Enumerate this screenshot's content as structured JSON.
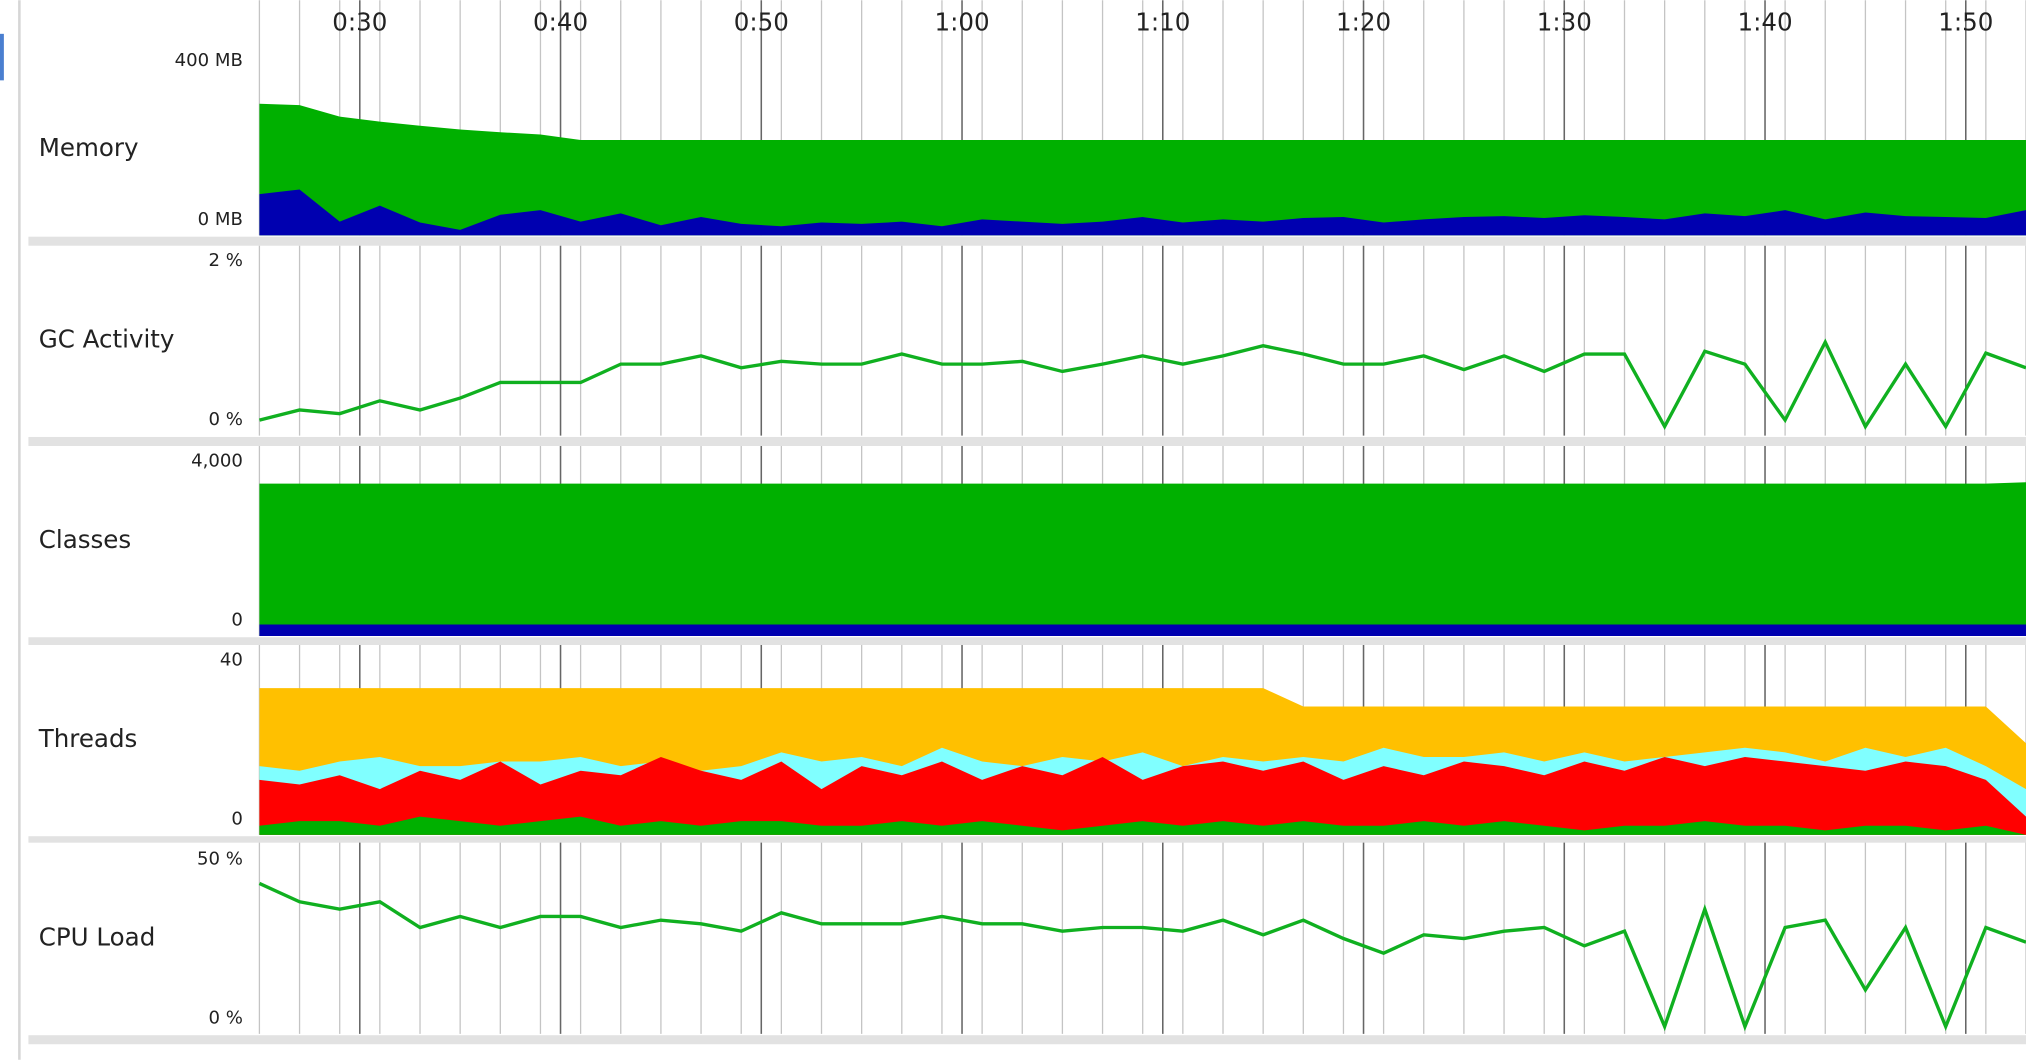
{
  "chart_data": [
    {
      "type": "area",
      "title": "Memory",
      "x": [
        25,
        27,
        29,
        31,
        33,
        35,
        37,
        39,
        41,
        43,
        45,
        47,
        49,
        51,
        53,
        55,
        57,
        59,
        61,
        63,
        65,
        67,
        69,
        71,
        73,
        75,
        77,
        79,
        81,
        83,
        85,
        87,
        89,
        91,
        93,
        95,
        97,
        99,
        101,
        103,
        105,
        107,
        109,
        111,
        113
      ],
      "xlim": [
        24.5,
        113
      ],
      "xticks": [
        {
          "value": 30,
          "label": "0:30"
        },
        {
          "value": 40,
          "label": "0:40"
        },
        {
          "value": 50,
          "label": "0:50"
        },
        {
          "value": 60,
          "label": "1:00"
        },
        {
          "value": 70,
          "label": "1:10"
        },
        {
          "value": 80,
          "label": "1:20"
        },
        {
          "value": 90,
          "label": "1:30"
        },
        {
          "value": 100,
          "label": "1:40"
        },
        {
          "value": 110,
          "label": "1:50"
        }
      ],
      "ylim": [
        0,
        400
      ],
      "yticks": [
        {
          "value": 400,
          "label": "400 MB"
        },
        {
          "value": 0,
          "label": "0 MB"
        }
      ],
      "series": [
        {
          "color": "#00b000",
          "values": [
            287,
            284,
            259,
            248,
            239,
            231,
            225,
            220,
            208,
            208,
            208,
            208,
            208,
            208,
            208,
            208,
            208,
            208,
            208,
            208,
            208,
            208,
            208,
            208,
            208,
            208,
            208,
            208,
            208,
            208,
            208,
            208,
            208,
            208,
            208,
            208,
            208,
            208,
            208,
            208,
            208,
            208,
            208,
            208,
            208
          ]
        },
        {
          "color": "#0000b0",
          "values": [
            90,
            100,
            30,
            65,
            28,
            12,
            45,
            55,
            30,
            48,
            22,
            40,
            25,
            20,
            28,
            25,
            30,
            20,
            35,
            30,
            25,
            30,
            40,
            28,
            35,
            30,
            38,
            40,
            28,
            35,
            40,
            42,
            38,
            44,
            40,
            35,
            48,
            42,
            55,
            35,
            50,
            42,
            40,
            38,
            55
          ]
        }
      ]
    },
    {
      "type": "line",
      "title": "GC Activity",
      "x": [
        25,
        27,
        29,
        31,
        33,
        35,
        37,
        39,
        41,
        43,
        45,
        47,
        49,
        51,
        53,
        55,
        57,
        59,
        61,
        63,
        65,
        67,
        69,
        71,
        73,
        75,
        77,
        79,
        81,
        83,
        85,
        87,
        89,
        91,
        93,
        95,
        97,
        99,
        101,
        103,
        105,
        107,
        109,
        111,
        113
      ],
      "xlim": [
        24.5,
        113
      ],
      "ylim": [
        0,
        2
      ],
      "yticks": [
        {
          "value": 2,
          "label": "2 %"
        },
        {
          "value": 0,
          "label": "0 %"
        }
      ],
      "series": [
        {
          "color": "#10b020",
          "values": [
            0.17,
            0.28,
            0.24,
            0.38,
            0.28,
            0.41,
            0.58,
            0.58,
            0.58,
            0.78,
            0.78,
            0.87,
            0.74,
            0.81,
            0.78,
            0.78,
            0.89,
            0.78,
            0.78,
            0.81,
            0.7,
            0.78,
            0.87,
            0.78,
            0.87,
            0.98,
            0.89,
            0.78,
            0.78,
            0.87,
            0.72,
            0.87,
            0.7,
            0.89,
            0.89,
            0.1,
            0.92,
            0.78,
            0.17,
            1.02,
            0.1,
            0.78,
            0.1,
            0.9,
            0.74
          ]
        }
      ]
    },
    {
      "type": "area",
      "title": "Classes",
      "x": [
        25,
        27,
        29,
        31,
        33,
        35,
        37,
        39,
        41,
        43,
        45,
        47,
        49,
        51,
        53,
        55,
        57,
        59,
        61,
        63,
        65,
        67,
        69,
        71,
        73,
        75,
        77,
        79,
        81,
        83,
        85,
        87,
        89,
        91,
        93,
        95,
        97,
        99,
        101,
        103,
        105,
        107,
        109,
        111,
        113
      ],
      "xlim": [
        24.5,
        113
      ],
      "ylim": [
        0,
        4000
      ],
      "yticks": [
        {
          "value": 4000,
          "label": "4,000"
        },
        0
      ],
      "series": [
        {
          "color": "#00b000",
          "values": [
            3320,
            3320,
            3320,
            3320,
            3320,
            3320,
            3320,
            3320,
            3320,
            3320,
            3320,
            3320,
            3320,
            3320,
            3320,
            3320,
            3320,
            3320,
            3320,
            3320,
            3320,
            3320,
            3320,
            3320,
            3320,
            3320,
            3320,
            3320,
            3320,
            3320,
            3320,
            3320,
            3320,
            3320,
            3320,
            3320,
            3320,
            3320,
            3320,
            3320,
            3320,
            3320,
            3320,
            3320,
            3350
          ]
        },
        {
          "color": "#0000b0",
          "values": [
            250,
            250,
            250,
            250,
            250,
            250,
            250,
            250,
            250,
            250,
            250,
            250,
            250,
            250,
            250,
            250,
            250,
            250,
            250,
            250,
            250,
            250,
            250,
            250,
            250,
            250,
            250,
            250,
            250,
            250,
            250,
            250,
            250,
            250,
            250,
            250,
            250,
            250,
            250,
            250,
            250,
            250,
            250,
            250,
            250
          ]
        }
      ]
    },
    {
      "type": "area",
      "title": "Threads",
      "x": [
        25,
        27,
        29,
        31,
        33,
        35,
        37,
        39,
        41,
        43,
        45,
        47,
        49,
        51,
        53,
        55,
        57,
        59,
        61,
        63,
        65,
        67,
        69,
        71,
        73,
        75,
        77,
        79,
        81,
        83,
        85,
        87,
        89,
        91,
        93,
        95,
        97,
        99,
        101,
        103,
        105,
        107,
        109,
        111,
        113
      ],
      "xlim": [
        24.5,
        113
      ],
      "ylim": [
        0,
        40
      ],
      "yticks": [
        40,
        0
      ],
      "series": [
        {
          "color": "#ffc000",
          "values": [
            32,
            32,
            32,
            32,
            32,
            32,
            32,
            32,
            32,
            32,
            32,
            32,
            32,
            32,
            32,
            32,
            32,
            32,
            32,
            32,
            32,
            32,
            32,
            32,
            32,
            32,
            28,
            28,
            28,
            28,
            28,
            28,
            28,
            28,
            28,
            28,
            28,
            28,
            28,
            28,
            28,
            28,
            28,
            28,
            20
          ]
        },
        {
          "color": "#80ffff",
          "values": [
            15,
            14,
            16,
            17,
            15,
            15,
            16,
            16,
            17,
            15,
            16,
            14,
            15,
            18,
            16,
            17,
            15,
            19,
            16,
            15,
            17,
            16,
            18,
            15,
            17,
            16,
            17,
            16,
            19,
            17,
            17,
            18,
            16,
            18,
            16,
            17,
            18,
            19,
            18,
            16,
            19,
            17,
            19,
            15,
            10
          ]
        },
        {
          "color": "#ff0000",
          "values": [
            12,
            11,
            13,
            10,
            14,
            12,
            16,
            11,
            14,
            13,
            17,
            14,
            12,
            16,
            10,
            15,
            13,
            16,
            12,
            15,
            13,
            17,
            12,
            15,
            16,
            14,
            16,
            12,
            15,
            13,
            16,
            15,
            13,
            16,
            14,
            17,
            15,
            17,
            16,
            15,
            14,
            16,
            15,
            12,
            4
          ]
        },
        {
          "color": "#00b000",
          "values": [
            2,
            3,
            3,
            2,
            4,
            3,
            2,
            3,
            4,
            2,
            3,
            2,
            3,
            3,
            2,
            2,
            3,
            2,
            3,
            2,
            1,
            2,
            3,
            2,
            3,
            2,
            3,
            2,
            2,
            3,
            2,
            3,
            2,
            1,
            2,
            2,
            3,
            2,
            2,
            1,
            2,
            2,
            1,
            2,
            0
          ]
        }
      ]
    },
    {
      "type": "line",
      "title": "CPU Load",
      "x": [
        25,
        27,
        29,
        31,
        33,
        35,
        37,
        39,
        41,
        43,
        45,
        47,
        49,
        51,
        53,
        55,
        57,
        59,
        61,
        63,
        65,
        67,
        69,
        71,
        73,
        75,
        77,
        79,
        81,
        83,
        85,
        87,
        89,
        91,
        93,
        95,
        97,
        99,
        101,
        103,
        105,
        107,
        109,
        111,
        113
      ],
      "xlim": [
        24.5,
        113
      ],
      "ylim": [
        0,
        50
      ],
      "yticks": [
        {
          "value": 50,
          "label": "50 %"
        },
        {
          "value": 0,
          "label": "0 %"
        }
      ],
      "series": [
        {
          "color": "#10b020",
          "values": [
            41,
            36,
            34,
            36,
            29,
            32,
            29,
            32,
            32,
            29,
            31,
            30,
            28,
            33,
            30,
            30,
            30,
            32,
            30,
            30,
            28,
            29,
            29,
            28,
            31,
            27,
            31,
            26,
            22,
            27,
            26,
            28,
            29,
            24,
            28,
            2,
            34,
            2,
            29,
            31,
            12,
            29,
            2,
            29,
            25
          ]
        }
      ]
    }
  ]
}
